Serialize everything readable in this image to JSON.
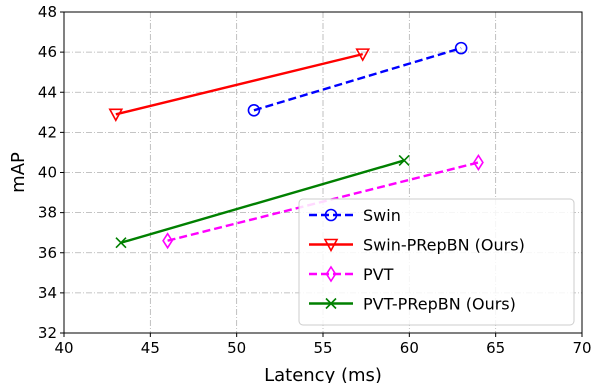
{
  "chart_data": {
    "type": "line",
    "title": "",
    "xlabel": "Latency (ms)",
    "ylabel": "mAP",
    "xlim": [
      40,
      70
    ],
    "ylim": [
      32,
      48
    ],
    "xticks": [
      40,
      45,
      50,
      55,
      60,
      65,
      70
    ],
    "yticks": [
      32,
      34,
      36,
      38,
      40,
      42,
      44,
      46,
      48
    ],
    "grid": true,
    "legend_position": "lower-right",
    "series": [
      {
        "name": "Swin",
        "color": "#0000ff",
        "linestyle": "dashed",
        "marker": "circle",
        "x": [
          51,
          63
        ],
        "y": [
          43.1,
          46.2
        ]
      },
      {
        "name": "Swin-PRepBN (Ours)",
        "color": "#ff0000",
        "linestyle": "solid",
        "marker": "triangle-down",
        "x": [
          43,
          57.3
        ],
        "y": [
          42.9,
          45.9
        ]
      },
      {
        "name": "PVT",
        "color": "#ff00ff",
        "linestyle": "dashed",
        "marker": "thin-diamond",
        "x": [
          46,
          64
        ],
        "y": [
          36.6,
          40.5
        ]
      },
      {
        "name": "PVT-PRepBN (Ours)",
        "color": "#008000",
        "linestyle": "solid",
        "marker": "x",
        "x": [
          43.3,
          59.7
        ],
        "y": [
          36.5,
          40.6
        ]
      }
    ]
  }
}
